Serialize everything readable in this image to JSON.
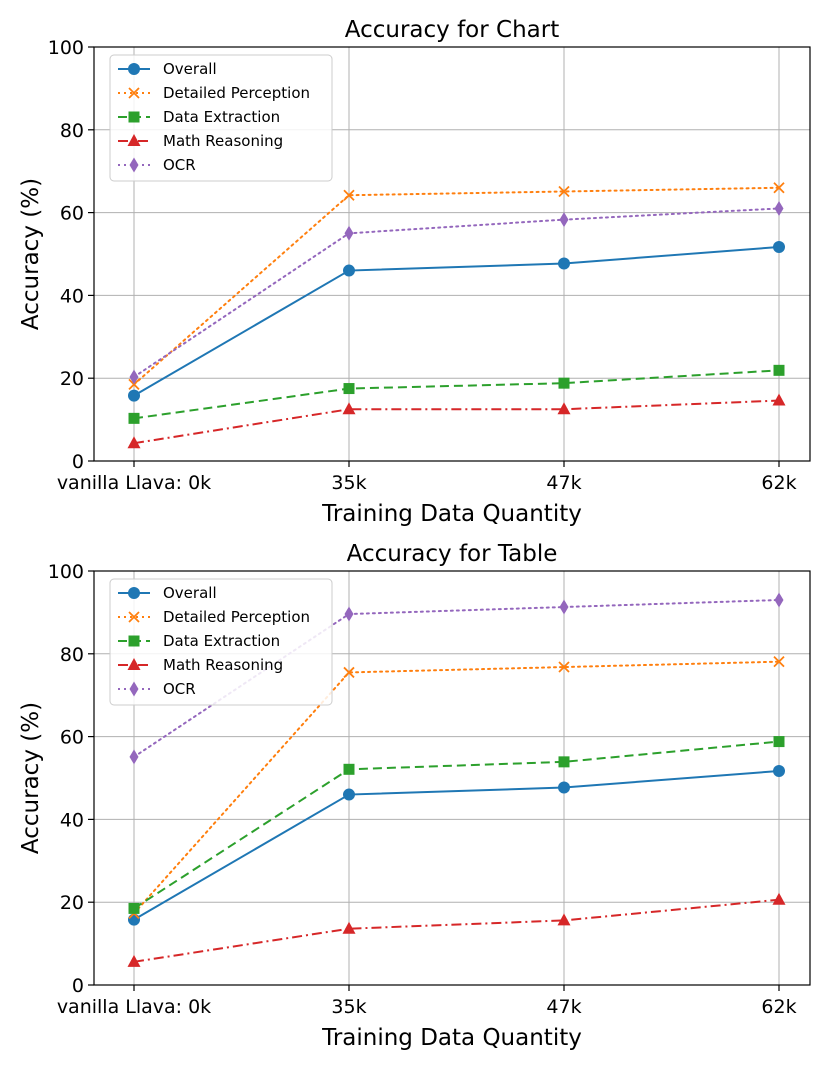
{
  "chart_data": [
    {
      "type": "line",
      "title": "Accuracy for Chart",
      "xlabel": "Training Data Quantity",
      "ylabel": "Accuracy (%)",
      "categories": [
        "vanilla Llava: 0k",
        "35k",
        "47k",
        "62k"
      ],
      "ylim": [
        0,
        100
      ],
      "yticks": [
        0,
        20,
        40,
        60,
        80,
        100
      ],
      "grid": true,
      "legend_position": "upper-left",
      "series": [
        {
          "name": "Overall",
          "values": [
            15.8,
            46.0,
            47.7,
            51.7
          ],
          "color": "#1f77b4",
          "linestyle": "solid",
          "marker": "circle"
        },
        {
          "name": "Detailed Perception",
          "values": [
            18.5,
            64.2,
            65.1,
            66.0
          ],
          "color": "#ff7f0e",
          "linestyle": "dotted",
          "marker": "x"
        },
        {
          "name": "Data Extraction",
          "values": [
            10.3,
            17.5,
            18.8,
            21.9
          ],
          "color": "#2ca02c",
          "linestyle": "dashed",
          "marker": "square"
        },
        {
          "name": "Math Reasoning",
          "values": [
            4.3,
            12.5,
            12.5,
            14.6
          ],
          "color": "#d62728",
          "linestyle": "dashdot",
          "marker": "triangle"
        },
        {
          "name": "OCR",
          "values": [
            20.3,
            55.0,
            58.3,
            61.0
          ],
          "color": "#9467bd",
          "linestyle": "dotted",
          "marker": "diamond"
        }
      ]
    },
    {
      "type": "line",
      "title": "Accuracy for Table",
      "xlabel": "Training Data Quantity",
      "ylabel": "Accuracy (%)",
      "categories": [
        "vanilla Llava: 0k",
        "35k",
        "47k",
        "62k"
      ],
      "ylim": [
        0,
        100
      ],
      "yticks": [
        0,
        20,
        40,
        60,
        80,
        100
      ],
      "grid": true,
      "legend_position": "upper-left",
      "series": [
        {
          "name": "Overall",
          "values": [
            15.8,
            46.0,
            47.7,
            51.7
          ],
          "color": "#1f77b4",
          "linestyle": "solid",
          "marker": "circle"
        },
        {
          "name": "Detailed Perception",
          "values": [
            17.3,
            75.5,
            76.8,
            78.1
          ],
          "color": "#ff7f0e",
          "linestyle": "dotted",
          "marker": "x"
        },
        {
          "name": "Data Extraction",
          "values": [
            18.5,
            52.1,
            53.9,
            58.8
          ],
          "color": "#2ca02c",
          "linestyle": "dashed",
          "marker": "square"
        },
        {
          "name": "Math Reasoning",
          "values": [
            5.6,
            13.6,
            15.6,
            20.6
          ],
          "color": "#d62728",
          "linestyle": "dashdot",
          "marker": "triangle"
        },
        {
          "name": "OCR",
          "values": [
            55.1,
            89.6,
            91.3,
            93.0
          ],
          "color": "#9467bd",
          "linestyle": "dotted",
          "marker": "diamond"
        }
      ]
    }
  ]
}
